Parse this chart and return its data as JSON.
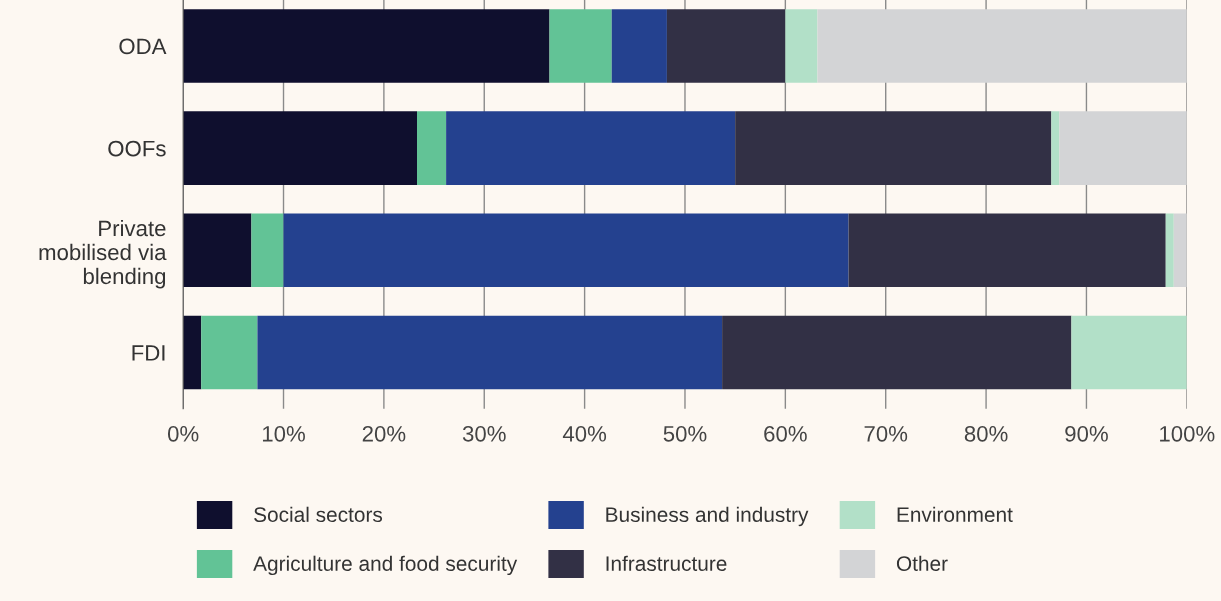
{
  "chart_data": {
    "type": "bar",
    "orientation": "horizontal",
    "stacked": true,
    "categories": [
      "ODA",
      "OOFs",
      "Private\nmobilised via\nblending",
      "FDI"
    ],
    "series": [
      {
        "name": "Social sectors",
        "color": "#0f0f2e",
        "values": [
          36.5,
          23.3,
          6.8,
          1.8
        ]
      },
      {
        "name": "Agriculture and food security",
        "color": "#62c396",
        "values": [
          6.2,
          2.9,
          3.2,
          5.6
        ]
      },
      {
        "name": "Business and industry",
        "color": "#24418f",
        "values": [
          5.5,
          28.8,
          56.3,
          46.3
        ]
      },
      {
        "name": "Infrastructure",
        "color": "#323045",
        "values": [
          11.8,
          31.5,
          31.6,
          34.8
        ]
      },
      {
        "name": "Environment",
        "color": "#b2e0c8",
        "values": [
          3.2,
          0.8,
          0.8,
          11.5
        ]
      },
      {
        "name": "Other",
        "color": "#d3d4d6",
        "values": [
          36.8,
          12.7,
          1.3,
          0
        ]
      }
    ],
    "xlim": [
      0,
      100
    ],
    "xticks": [
      {
        "value": 0,
        "label": "0%"
      },
      {
        "value": 10,
        "label": "10%"
      },
      {
        "value": 20,
        "label": "20%"
      },
      {
        "value": 30,
        "label": "30%"
      },
      {
        "value": 40,
        "label": "40%"
      },
      {
        "value": 50,
        "label": "50%"
      },
      {
        "value": 60,
        "label": "60%"
      },
      {
        "value": 70,
        "label": "70%"
      },
      {
        "value": 80,
        "label": "80%"
      },
      {
        "value": 90,
        "label": "90%"
      },
      {
        "value": 100,
        "label": "100%"
      }
    ],
    "grid": "x",
    "legend": "bottom"
  }
}
